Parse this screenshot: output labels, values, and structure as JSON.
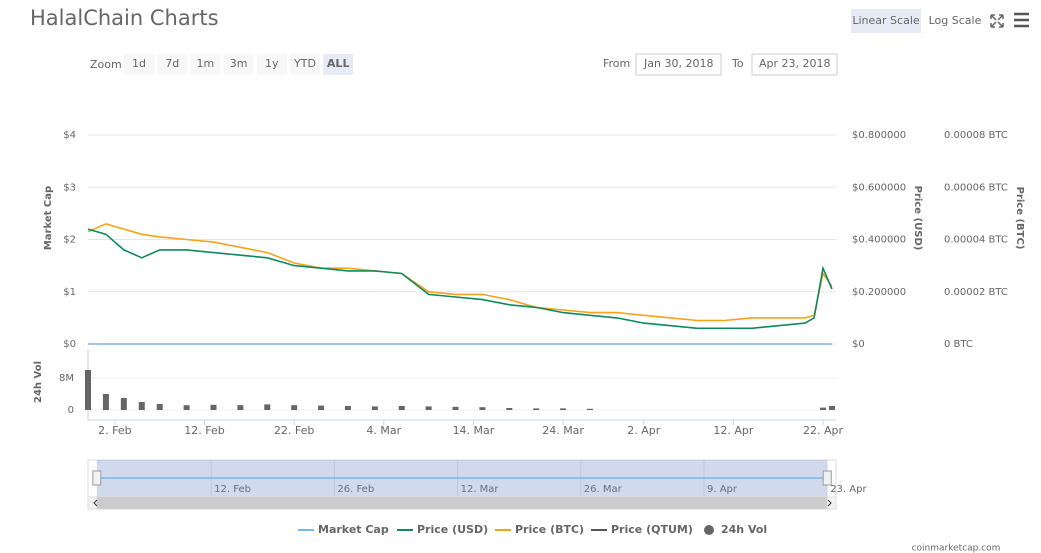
{
  "header": {
    "title": "HalalChain Charts",
    "scale_buttons": [
      "Linear Scale",
      "Log Scale"
    ],
    "active_scale": 0,
    "zoom_label": "Zoom",
    "zoom_buttons": [
      "1d",
      "7d",
      "1m",
      "3m",
      "1y",
      "YTD",
      "ALL"
    ],
    "active_zoom": 6,
    "from_label": "From",
    "from_date": "Jan 30, 2018",
    "to_label": "To",
    "to_date": "Apr 23, 2018"
  },
  "chart_data": [
    {
      "type": "line",
      "x": [
        "2018-01-30",
        "2018-02-01",
        "2018-02-03",
        "2018-02-05",
        "2018-02-07",
        "2018-02-10",
        "2018-02-13",
        "2018-02-16",
        "2018-02-19",
        "2018-02-22",
        "2018-02-25",
        "2018-02-28",
        "2018-03-03",
        "2018-03-06",
        "2018-03-09",
        "2018-03-12",
        "2018-03-15",
        "2018-03-18",
        "2018-03-21",
        "2018-03-24",
        "2018-03-27",
        "2018-03-30",
        "2018-04-02",
        "2018-04-05",
        "2018-04-08",
        "2018-04-11",
        "2018-04-14",
        "2018-04-17",
        "2018-04-20",
        "2018-04-21",
        "2018-04-22",
        "2018-04-23"
      ],
      "xlim": [
        "2018-01-30",
        "2018-04-23"
      ],
      "xticks": [
        {
          "value": "2018-02-02",
          "label": "2. Feb"
        },
        {
          "value": "2018-02-12",
          "label": "12. Feb"
        },
        {
          "value": "2018-02-22",
          "label": "22. Feb"
        },
        {
          "value": "2018-03-04",
          "label": "4. Mar"
        },
        {
          "value": "2018-03-14",
          "label": "14. Mar"
        },
        {
          "value": "2018-03-24",
          "label": "24. Mar"
        },
        {
          "value": "2018-04-02",
          "label": "2. Apr"
        },
        {
          "value": "2018-04-12",
          "label": "12. Apr"
        },
        {
          "value": "2018-04-22",
          "label": "22. Apr"
        }
      ],
      "ylabel": "Market Cap",
      "ylim": [
        0,
        4
      ],
      "yticks": [
        {
          "value": 0,
          "label": "$0"
        },
        {
          "value": 1,
          "label": "$1"
        },
        {
          "value": 2,
          "label": "$2"
        },
        {
          "value": 3,
          "label": "$3"
        },
        {
          "value": 4,
          "label": "$4"
        }
      ],
      "y2label": "Price (USD)",
      "y2lim": [
        0,
        0.8
      ],
      "y2ticks": [
        {
          "value": 0,
          "label": "$0"
        },
        {
          "value": 0.2,
          "label": "$0.200000"
        },
        {
          "value": 0.4,
          "label": "$0.400000"
        },
        {
          "value": 0.6,
          "label": "$0.600000"
        },
        {
          "value": 0.8,
          "label": "$0.800000"
        }
      ],
      "y3label": "Price (BTC)",
      "y3lim": [
        0,
        8e-05
      ],
      "y3ticks": [
        {
          "value": 0,
          "label": "0 BTC"
        },
        {
          "value": 2e-05,
          "label": "0.00002 BTC"
        },
        {
          "value": 4e-05,
          "label": "0.00004 BTC"
        },
        {
          "value": 6e-05,
          "label": "0.00006 BTC"
        },
        {
          "value": 8e-05,
          "label": "0.00008 BTC"
        }
      ],
      "grid": true,
      "series": [
        {
          "name": "Market Cap",
          "color": "#7cb5ec",
          "axis": "y",
          "values": [
            0,
            0,
            0,
            0,
            0,
            0,
            0,
            0,
            0,
            0,
            0,
            0,
            0,
            0,
            0,
            0,
            0,
            0,
            0,
            0,
            0,
            0,
            0,
            0,
            0,
            0,
            0,
            0,
            0,
            0,
            0,
            0
          ]
        },
        {
          "name": "Price (USD)",
          "color": "#0d8a5f",
          "axis": "y2",
          "values": [
            0.44,
            0.42,
            0.36,
            0.33,
            0.36,
            0.36,
            0.35,
            0.34,
            0.33,
            0.3,
            0.29,
            0.28,
            0.28,
            0.27,
            0.19,
            0.18,
            0.17,
            0.15,
            0.14,
            0.12,
            0.11,
            0.1,
            0.08,
            0.07,
            0.06,
            0.06,
            0.06,
            0.07,
            0.08,
            0.1,
            0.29,
            0.21
          ]
        },
        {
          "name": "Price (BTC)",
          "color": "#f7a21b",
          "axis": "y3",
          "values": [
            4.3e-05,
            4.6e-05,
            4.4e-05,
            4.2e-05,
            4.1e-05,
            4e-05,
            3.9e-05,
            3.7e-05,
            3.5e-05,
            3.1e-05,
            2.9e-05,
            2.9e-05,
            2.8e-05,
            2.7e-05,
            2e-05,
            1.9e-05,
            1.9e-05,
            1.7e-05,
            1.4e-05,
            1.3e-05,
            1.2e-05,
            1.2e-05,
            1.1e-05,
            1e-05,
            9e-06,
            9e-06,
            1e-05,
            1e-05,
            1e-05,
            1.1e-05,
            2.7e-05,
            2.2e-05
          ]
        },
        {
          "name": "Price (QTUM)",
          "color": "#555555",
          "axis": "y",
          "values": [
            null,
            null,
            null,
            null,
            null,
            null,
            null,
            null,
            null,
            null,
            null,
            null,
            null,
            null,
            null,
            null,
            null,
            null,
            null,
            null,
            null,
            null,
            null,
            null,
            null,
            null,
            null,
            null,
            null,
            null,
            null,
            null
          ]
        }
      ]
    },
    {
      "type": "bar",
      "ylabel": "24h Vol",
      "ylim": [
        0,
        15000000
      ],
      "yticks": [
        0,
        {
          "value": 8000000,
          "label": "8M"
        }
      ],
      "series": [
        {
          "name": "24h Vol",
          "color": "#666666",
          "values": [
            10000000,
            4000000,
            3000000,
            2000000,
            1500000,
            1200000,
            1300000,
            1200000,
            1400000,
            1200000,
            1100000,
            1000000,
            900000,
            1000000,
            900000,
            800000,
            700000,
            500000,
            400000,
            400000,
            300000,
            null,
            null,
            null,
            null,
            null,
            null,
            null,
            null,
            null,
            600000,
            1000000
          ]
        }
      ]
    },
    {
      "type": "navigator",
      "xlim": [
        "2018-01-29",
        "2018-04-24"
      ],
      "xticks": [
        {
          "value": "2018-02-12",
          "label": "12. Feb"
        },
        {
          "value": "2018-02-26",
          "label": "26. Feb"
        },
        {
          "value": "2018-03-12",
          "label": "12. Mar"
        },
        {
          "value": "2018-03-26",
          "label": "26. Mar"
        },
        {
          "value": "2018-04-09",
          "label": "9. Apr"
        },
        {
          "value": "2018-04-23",
          "label": "23. Apr"
        }
      ]
    }
  ],
  "footer": "coinmarketcap.com"
}
